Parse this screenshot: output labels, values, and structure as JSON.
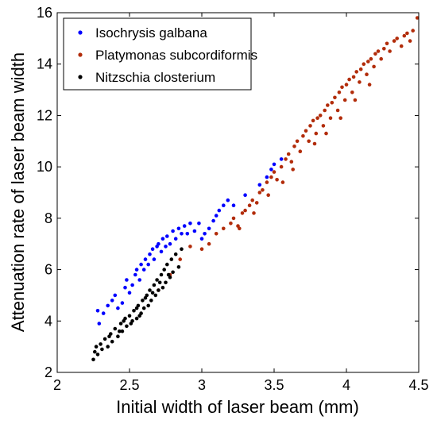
{
  "chart_data": {
    "type": "scatter",
    "title": "",
    "xlabel": "Initial width of laser beam (mm)",
    "ylabel": "Attenuation rate of laser beam width",
    "xlim": [
      2,
      4.5
    ],
    "ylim": [
      2,
      16
    ],
    "x_ticks": [
      2,
      2.5,
      3,
      3.5,
      4,
      4.5
    ],
    "x_tick_labels": [
      "2",
      "2.5",
      "3",
      "3.5",
      "4",
      "4.5"
    ],
    "y_ticks": [
      2,
      4,
      6,
      8,
      10,
      12,
      14,
      16
    ],
    "y_tick_labels": [
      "2",
      "4",
      "6",
      "8",
      "10",
      "12",
      "14",
      "16"
    ],
    "grid": false,
    "legend_position": "top-left",
    "series": [
      {
        "name": "Isochrysis galbana",
        "color": "#0000ff",
        "points": [
          [
            2.28,
            4.4
          ],
          [
            2.29,
            3.9
          ],
          [
            2.32,
            4.3
          ],
          [
            2.35,
            4.6
          ],
          [
            2.38,
            4.8
          ],
          [
            2.4,
            5.0
          ],
          [
            2.42,
            4.5
          ],
          [
            2.45,
            4.7
          ],
          [
            2.47,
            5.3
          ],
          [
            2.48,
            5.6
          ],
          [
            2.5,
            5.1
          ],
          [
            2.52,
            5.4
          ],
          [
            2.54,
            5.8
          ],
          [
            2.55,
            6.0
          ],
          [
            2.57,
            5.6
          ],
          [
            2.58,
            6.2
          ],
          [
            2.6,
            6.0
          ],
          [
            2.61,
            6.4
          ],
          [
            2.63,
            6.2
          ],
          [
            2.64,
            6.6
          ],
          [
            2.66,
            6.8
          ],
          [
            2.67,
            6.4
          ],
          [
            2.69,
            6.9
          ],
          [
            2.7,
            7.0
          ],
          [
            2.72,
            6.7
          ],
          [
            2.73,
            7.2
          ],
          [
            2.75,
            6.9
          ],
          [
            2.76,
            7.3
          ],
          [
            2.78,
            7.0
          ],
          [
            2.8,
            7.5
          ],
          [
            2.82,
            7.2
          ],
          [
            2.84,
            7.6
          ],
          [
            2.86,
            7.4
          ],
          [
            2.88,
            7.7
          ],
          [
            2.9,
            7.4
          ],
          [
            2.92,
            7.8
          ],
          [
            2.95,
            7.5
          ],
          [
            2.98,
            7.8
          ],
          [
            3.0,
            7.2
          ],
          [
            3.02,
            7.4
          ],
          [
            3.05,
            7.6
          ],
          [
            3.08,
            7.9
          ],
          [
            3.1,
            8.1
          ],
          [
            3.12,
            8.3
          ],
          [
            3.15,
            8.5
          ],
          [
            3.18,
            8.7
          ],
          [
            3.22,
            8.5
          ],
          [
            3.3,
            8.9
          ],
          [
            3.4,
            9.3
          ],
          [
            3.45,
            9.6
          ],
          [
            3.48,
            9.9
          ],
          [
            3.5,
            10.1
          ],
          [
            3.55,
            10.3
          ]
        ]
      },
      {
        "name": "Platymonas subcordiformis",
        "color": "#b22c0a",
        "points": [
          [
            2.7,
            5.2
          ],
          [
            2.78,
            5.8
          ],
          [
            2.85,
            6.4
          ],
          [
            2.92,
            6.9
          ],
          [
            3.0,
            6.8
          ],
          [
            3.05,
            7.0
          ],
          [
            3.1,
            7.4
          ],
          [
            3.15,
            7.6
          ],
          [
            3.2,
            7.8
          ],
          [
            3.22,
            8.0
          ],
          [
            3.25,
            7.7
          ],
          [
            3.28,
            8.2
          ],
          [
            3.3,
            8.3
          ],
          [
            3.33,
            8.5
          ],
          [
            3.35,
            8.7
          ],
          [
            3.38,
            8.6
          ],
          [
            3.4,
            9.0
          ],
          [
            3.42,
            9.1
          ],
          [
            3.45,
            9.4
          ],
          [
            3.48,
            9.6
          ],
          [
            3.5,
            9.8
          ],
          [
            3.52,
            9.5
          ],
          [
            3.55,
            10.0
          ],
          [
            3.58,
            10.3
          ],
          [
            3.6,
            10.5
          ],
          [
            3.62,
            10.2
          ],
          [
            3.64,
            10.8
          ],
          [
            3.66,
            11.0
          ],
          [
            3.68,
            10.6
          ],
          [
            3.7,
            11.2
          ],
          [
            3.72,
            11.4
          ],
          [
            3.74,
            11.0
          ],
          [
            3.75,
            11.6
          ],
          [
            3.77,
            11.8
          ],
          [
            3.79,
            11.3
          ],
          [
            3.8,
            11.9
          ],
          [
            3.82,
            12.0
          ],
          [
            3.84,
            11.6
          ],
          [
            3.85,
            12.2
          ],
          [
            3.87,
            12.4
          ],
          [
            3.89,
            11.9
          ],
          [
            3.9,
            12.5
          ],
          [
            3.92,
            12.7
          ],
          [
            3.94,
            12.2
          ],
          [
            3.95,
            12.9
          ],
          [
            3.97,
            13.1
          ],
          [
            3.99,
            12.6
          ],
          [
            4.0,
            13.2
          ],
          [
            4.02,
            13.4
          ],
          [
            4.04,
            12.9
          ],
          [
            4.05,
            13.5
          ],
          [
            4.07,
            13.7
          ],
          [
            4.09,
            13.3
          ],
          [
            4.1,
            13.8
          ],
          [
            4.12,
            14.0
          ],
          [
            4.14,
            13.6
          ],
          [
            4.15,
            14.1
          ],
          [
            4.17,
            14.2
          ],
          [
            4.19,
            13.9
          ],
          [
            4.2,
            14.4
          ],
          [
            4.22,
            14.5
          ],
          [
            4.24,
            14.2
          ],
          [
            4.26,
            14.6
          ],
          [
            4.28,
            14.8
          ],
          [
            4.3,
            14.5
          ],
          [
            4.33,
            14.9
          ],
          [
            4.35,
            15.0
          ],
          [
            4.38,
            14.7
          ],
          [
            4.4,
            15.1
          ],
          [
            4.42,
            15.2
          ],
          [
            4.44,
            14.9
          ],
          [
            4.46,
            15.3
          ],
          [
            4.49,
            15.8
          ],
          [
            3.78,
            10.9
          ],
          [
            3.86,
            11.3
          ],
          [
            3.96,
            11.9
          ],
          [
            4.06,
            12.6
          ],
          [
            4.16,
            13.2
          ],
          [
            3.63,
            9.9
          ],
          [
            3.56,
            9.4
          ],
          [
            3.46,
            8.9
          ],
          [
            3.36,
            8.2
          ],
          [
            3.26,
            7.6
          ]
        ]
      },
      {
        "name": "Nitzschia closterium",
        "color": "#000000",
        "points": [
          [
            2.25,
            2.5
          ],
          [
            2.26,
            2.8
          ],
          [
            2.27,
            3.0
          ],
          [
            2.28,
            2.7
          ],
          [
            2.3,
            3.1
          ],
          [
            2.31,
            2.9
          ],
          [
            2.33,
            3.3
          ],
          [
            2.35,
            3.0
          ],
          [
            2.37,
            3.5
          ],
          [
            2.38,
            3.2
          ],
          [
            2.4,
            3.7
          ],
          [
            2.42,
            3.4
          ],
          [
            2.44,
            3.9
          ],
          [
            2.45,
            3.6
          ],
          [
            2.47,
            4.1
          ],
          [
            2.48,
            3.8
          ],
          [
            2.5,
            4.2
          ],
          [
            2.52,
            4.0
          ],
          [
            2.53,
            4.4
          ],
          [
            2.55,
            4.1
          ],
          [
            2.56,
            4.6
          ],
          [
            2.58,
            4.3
          ],
          [
            2.59,
            4.8
          ],
          [
            2.6,
            4.5
          ],
          [
            2.62,
            5.0
          ],
          [
            2.63,
            4.6
          ],
          [
            2.64,
            5.2
          ],
          [
            2.65,
            4.8
          ],
          [
            2.67,
            5.4
          ],
          [
            2.68,
            5.0
          ],
          [
            2.69,
            5.6
          ],
          [
            2.7,
            5.2
          ],
          [
            2.72,
            5.8
          ],
          [
            2.73,
            5.3
          ],
          [
            2.74,
            6.0
          ],
          [
            2.75,
            5.5
          ],
          [
            2.76,
            6.2
          ],
          [
            2.78,
            5.7
          ],
          [
            2.79,
            6.4
          ],
          [
            2.8,
            5.9
          ],
          [
            2.82,
            6.6
          ],
          [
            2.84,
            6.1
          ],
          [
            2.86,
            6.8
          ],
          [
            2.46,
            4.0
          ],
          [
            2.55,
            4.5
          ],
          [
            2.61,
            4.9
          ],
          [
            2.66,
            5.1
          ],
          [
            2.71,
            5.5
          ],
          [
            2.77,
            5.8
          ],
          [
            2.43,
            3.6
          ],
          [
            2.36,
            3.4
          ],
          [
            2.51,
            3.9
          ],
          [
            2.57,
            4.2
          ]
        ]
      }
    ]
  },
  "legend_entries": [
    "Isochrysis galbana",
    "Platymonas subcordiformis",
    "Nitzschia closterium"
  ]
}
